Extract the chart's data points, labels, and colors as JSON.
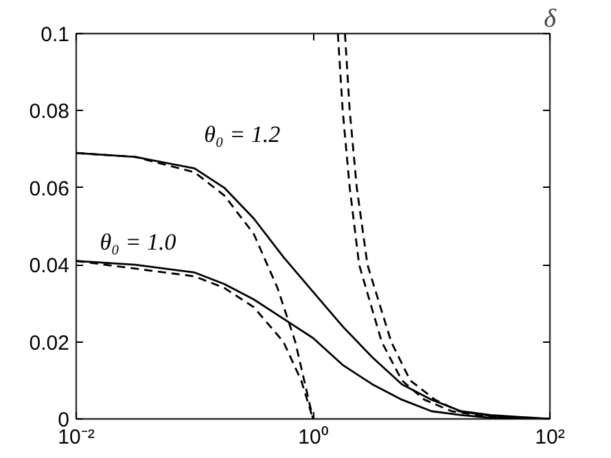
{
  "chart_data": {
    "type": "line",
    "xlabel": "δ",
    "log": "x",
    "xlim": [
      0.01,
      100
    ],
    "ylim": [
      0,
      0.1
    ],
    "xticks": [
      {
        "value": 0.01,
        "label": "10⁻²"
      },
      {
        "value": 1,
        "label": "10⁰"
      },
      {
        "value": 100,
        "label": "10²"
      }
    ],
    "yticks": [
      0,
      0.02,
      0.04,
      0.06,
      0.08,
      0.1
    ],
    "grid": false,
    "marker": "none",
    "annotations": [
      "θ₀ = 1.2",
      "θ₀ = 1.0"
    ],
    "series": [
      {
        "color": "#000000",
        "line_style": "solid",
        "x": [
          0.01,
          0.0316,
          0.1,
          0.178,
          0.316,
          0.562,
          1,
          1.78,
          3.16,
          5.62,
          10,
          17.8,
          31.6,
          100
        ],
        "values": [
          0.069,
          0.068,
          0.065,
          0.06,
          0.052,
          0.042,
          0.033,
          0.024,
          0.016,
          0.009,
          0.005,
          0.002,
          0.001,
          0.0
        ]
      },
      {
        "color": "#000000",
        "line_style": "solid",
        "x": [
          0.01,
          0.0316,
          0.1,
          0.178,
          0.316,
          0.562,
          1,
          1.78,
          3.16,
          5.62,
          10,
          17.8,
          31.6,
          100
        ],
        "values": [
          0.041,
          0.04,
          0.038,
          0.035,
          0.031,
          0.026,
          0.021,
          0.014,
          0.009,
          0.005,
          0.002,
          0.001,
          0.0003,
          0.0
        ]
      },
      {
        "color": "#000000",
        "line_style": "dashed",
        "x": [
          0.01,
          0.0316,
          0.1,
          0.178,
          0.316,
          0.501,
          0.708,
          1
        ],
        "values": [
          0.069,
          0.068,
          0.064,
          0.058,
          0.048,
          0.034,
          0.02,
          0.0
        ]
      },
      {
        "color": "#000000",
        "line_style": "dashed",
        "x": [
          0.01,
          0.1,
          0.178,
          0.316,
          0.562,
          0.794,
          1
        ],
        "values": [
          0.041,
          0.037,
          0.034,
          0.029,
          0.02,
          0.01,
          0.0
        ]
      },
      {
        "color": "#000000",
        "line_style": "dashed",
        "x": [
          1.62,
          1.78,
          2.04,
          2.45,
          3.8,
          5.62,
          8.71,
          14.8,
          32.4,
          100
        ],
        "values": [
          0.1,
          0.08,
          0.06,
          0.04,
          0.02,
          0.01,
          0.005,
          0.002,
          0.0005,
          0.0
        ]
      },
      {
        "color": "#000000",
        "line_style": "dashed",
        "x": [
          1.86,
          2.04,
          2.34,
          2.88,
          4.57,
          6.61,
          10.7,
          17.0,
          37.2,
          100
        ],
        "values": [
          0.1,
          0.08,
          0.06,
          0.04,
          0.02,
          0.01,
          0.005,
          0.002,
          0.0005,
          0.0
        ]
      }
    ]
  }
}
